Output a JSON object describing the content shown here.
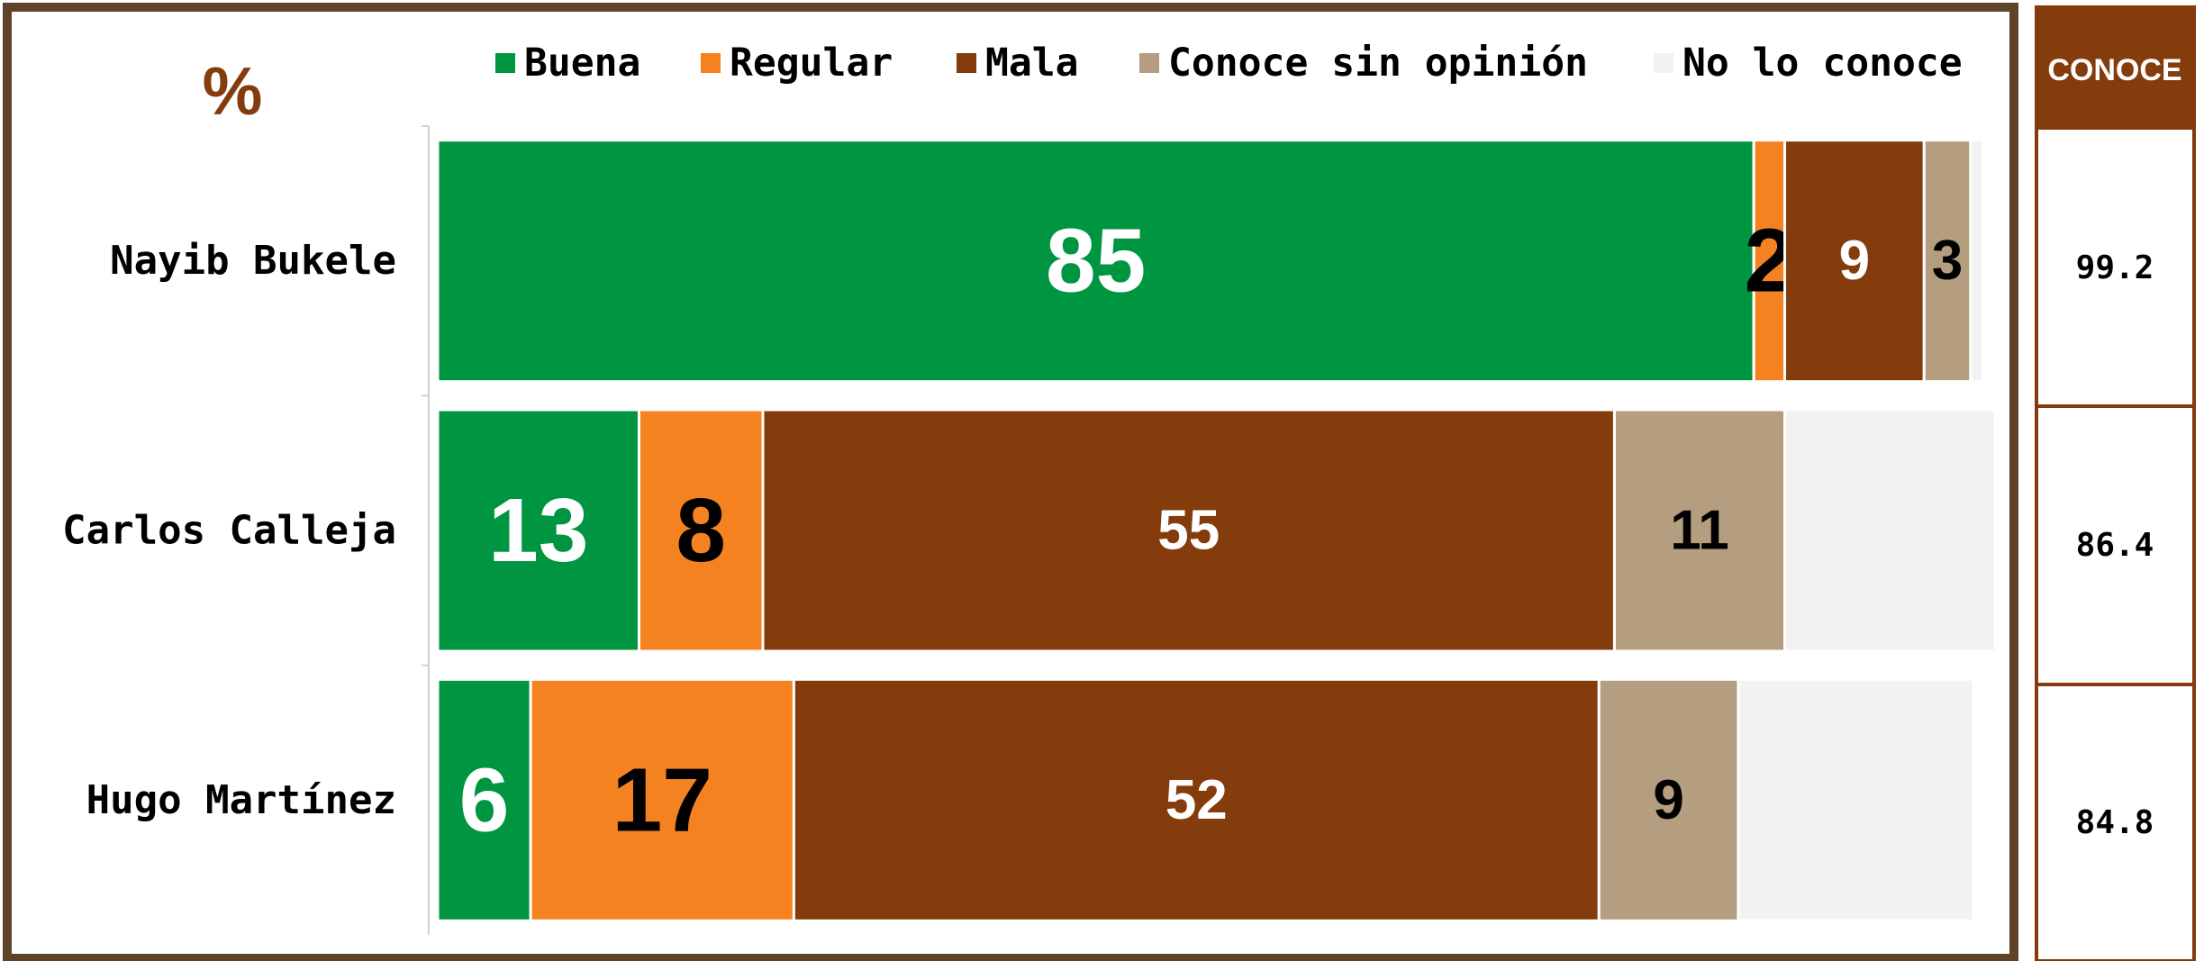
{
  "chart_data": {
    "type": "stacked_barh",
    "title": "%",
    "categories": [
      "Nayib Bukele",
      "Carlos Calleja",
      "Hugo Martínez"
    ],
    "xlim": [
      0,
      100
    ],
    "series": [
      {
        "name": "Buena",
        "color": "#009540",
        "label_color": "#ffffff",
        "values": [
          85,
          13,
          6
        ]
      },
      {
        "name": "Regular",
        "color": "#f58220",
        "label_color": "#000000",
        "values": [
          2,
          8,
          17
        ]
      },
      {
        "name": "Mala",
        "color": "#843c0c",
        "label_color": "#ffffff",
        "values": [
          9,
          55,
          52
        ]
      },
      {
        "name": "Conoce sin opinión",
        "color": "#b49e7f",
        "label_color": "#000000",
        "values": [
          3,
          11,
          9
        ]
      },
      {
        "name": "No lo conoce",
        "color": "#f2f2f2",
        "label_color": "#000000",
        "values": [
          0.8,
          13.6,
          15.2
        ],
        "value_labels": [
          null,
          null,
          null
        ]
      }
    ],
    "legend": "top"
  },
  "side_table": {
    "header": "CONOCE",
    "values": [
      99.2,
      86.4,
      84.8
    ]
  }
}
